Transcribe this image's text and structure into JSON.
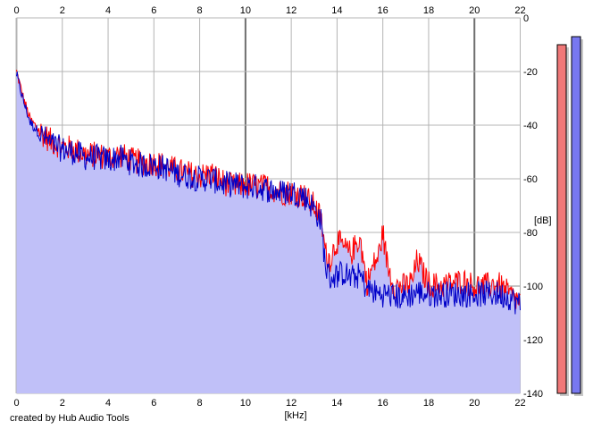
{
  "footer": "created by Hub Audio Tools",
  "chart_data": {
    "type": "area",
    "xlabel": "[kHz]",
    "ylabel": "[dB]",
    "xlim": [
      0,
      22
    ],
    "ylim": [
      -140,
      0
    ],
    "xticks": [
      "0",
      "2",
      "4",
      "6",
      "8",
      "10",
      "12",
      "14",
      "16",
      "18",
      "20",
      "22"
    ],
    "yticks": [
      "0",
      "-20",
      "-40",
      "-60",
      "-80",
      "-100",
      "-120",
      "-140"
    ],
    "grid": true,
    "colors": {
      "fill": "#c0c0f8",
      "red": "#ff0000",
      "blue": "#0000c8",
      "grid": "#b4b4b4"
    },
    "series": [
      {
        "x": [
          0,
          0.3,
          0.6,
          1,
          1.5,
          2,
          2.5,
          3,
          3.5,
          4,
          4.5,
          5,
          5.5,
          6,
          6.5,
          7,
          7.5,
          8,
          8.5,
          9,
          9.5,
          10,
          10.5,
          11,
          11.5,
          12,
          12.5,
          13,
          13.3,
          13.5,
          13.7,
          14,
          14.3,
          14.6,
          15,
          15.3,
          15.6,
          15.8,
          16,
          16.2,
          16.5,
          17,
          17.3,
          17.5,
          17.8,
          18,
          18.5,
          19,
          19.5,
          20,
          20.5,
          21,
          21.5,
          22
        ],
        "values": [
          -20,
          -30,
          -38,
          -42,
          -46,
          -48,
          -49,
          -51,
          -51,
          -52,
          -51,
          -53,
          -54,
          -54,
          -55,
          -57,
          -58,
          -59,
          -58,
          -61,
          -63,
          -62,
          -63,
          -63,
          -65,
          -65,
          -66,
          -70,
          -75,
          -88,
          -90,
          -83,
          -86,
          -88,
          -82,
          -99,
          -92,
          -89,
          -80,
          -92,
          -100,
          -100,
          -98,
          -90,
          -96,
          -99,
          -100,
          -99,
          -98,
          -100,
          -100,
          -99,
          -103,
          -106
        ]
      },
      {
        "x": [
          0,
          0.3,
          0.6,
          1,
          1.5,
          2,
          2.5,
          3,
          3.5,
          4,
          4.5,
          5,
          5.5,
          6,
          6.5,
          7,
          7.5,
          8,
          8.5,
          9,
          9.5,
          10,
          10.5,
          11,
          11.5,
          12,
          12.5,
          13,
          13.3,
          13.5,
          13.7,
          14,
          14.3,
          14.6,
          15,
          15.3,
          15.6,
          15.8,
          16,
          16.2,
          16.5,
          17,
          17.3,
          17.5,
          17.8,
          18,
          18.5,
          19,
          19.5,
          20,
          20.5,
          21,
          21.5,
          22
        ],
        "values": [
          -21,
          -31,
          -39,
          -43,
          -47,
          -49,
          -50,
          -52,
          -52,
          -53,
          -52,
          -54,
          -55,
          -55,
          -56,
          -58,
          -59,
          -60,
          -60,
          -62,
          -62,
          -63,
          -63,
          -64,
          -65,
          -65,
          -66,
          -71,
          -76,
          -93,
          -97,
          -96,
          -95,
          -97,
          -96,
          -101,
          -102,
          -103,
          -103,
          -103,
          -104,
          -104,
          -103,
          -102,
          -103,
          -103,
          -103,
          -103,
          -103,
          -103,
          -103,
          -103,
          -104,
          -107
        ]
      }
    ],
    "meters": [
      {
        "level": -10
      },
      {
        "level": -7
      }
    ]
  }
}
